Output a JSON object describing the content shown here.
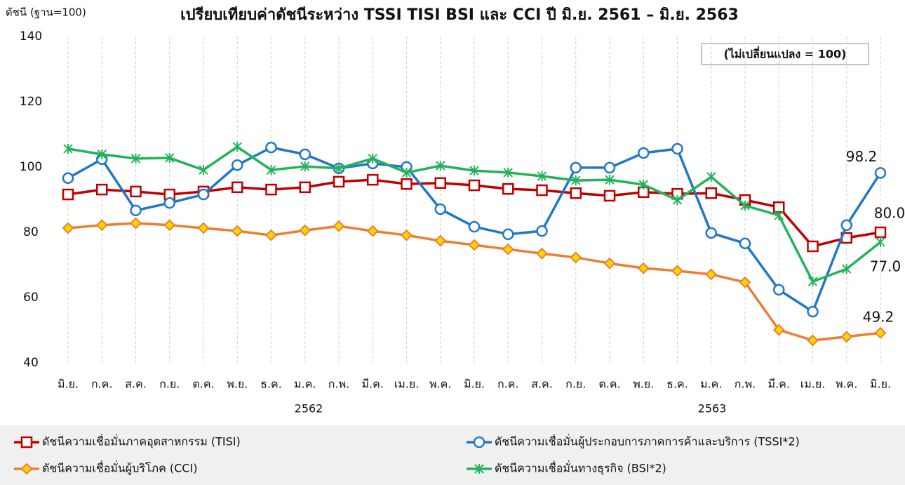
{
  "chart_data": {
    "type": "line",
    "title": "เปรียบเทียบค่าดัชนีระหว่าง TSSI TISI BSI และ CCI ปี มิ.ย. 2561 – มิ.ย. 2563",
    "y_axis_label": "ดัชนี (ฐาน=100)",
    "annotation": "(ไม่เปลี่ยนแปลง = 100)",
    "categories": [
      "มิ.ย.",
      "ก.ค.",
      "ส.ค.",
      "ก.ย.",
      "ต.ค.",
      "พ.ย.",
      "ธ.ค.",
      "ม.ค.",
      "ก.พ.",
      "มี.ค.",
      "เม.ย.",
      "พ.ค.",
      "มิ.ย.",
      "ก.ค.",
      "ส.ค.",
      "ก.ย.",
      "ต.ค.",
      "พ.ย.",
      "ธ.ค.",
      "ม.ค.",
      "ก.พ.",
      "มี.ค.",
      "เม.ย.",
      "พ.ค.",
      "มิ.ย."
    ],
    "year_labels": [
      "2562",
      "2563"
    ],
    "ylim": [
      40,
      140
    ],
    "yticks": [
      40,
      60,
      80,
      100,
      120,
      140
    ],
    "series": [
      {
        "name": "ดัชนีความเชื่อมั่นภาคอุตสาหกรรม (TISI)",
        "color": "#c00000",
        "marker": "square",
        "values": [
          91.6,
          93.1,
          92.5,
          91.6,
          92.5,
          93.8,
          93.1,
          93.8,
          95.5,
          96.1,
          94.8,
          95.1,
          94.4,
          93.3,
          92.9,
          92.0,
          91.2,
          92.3,
          91.8,
          92.0,
          89.9,
          87.7,
          75.7,
          78.3,
          80.0
        ],
        "value_labels": [
          null,
          null,
          null,
          null,
          null,
          null,
          null,
          null,
          null,
          null,
          null,
          null,
          null,
          null,
          null,
          null,
          null,
          null,
          null,
          null,
          null,
          null,
          null,
          null,
          "80.0"
        ]
      },
      {
        "name": "ดัชนีความเชื่อมั่นผู้ประกอบการภาคการค้าและบริการ (TSSI*2)",
        "color": "#1f78c8",
        "marker": "circle",
        "values": [
          96.6,
          102.4,
          86.7,
          89.0,
          91.6,
          100.6,
          106.0,
          103.9,
          99.6,
          101.1,
          100.0,
          87.1,
          81.7,
          79.4,
          80.4,
          99.8,
          99.8,
          104.3,
          105.6,
          79.8,
          76.6,
          62.4,
          55.7,
          82.2,
          98.2
        ],
        "value_labels": [
          null,
          null,
          null,
          null,
          null,
          null,
          null,
          null,
          null,
          null,
          null,
          null,
          null,
          null,
          null,
          null,
          null,
          null,
          null,
          null,
          null,
          null,
          null,
          null,
          "98.2"
        ]
      },
      {
        "name": "ดัชนีความเชื่อมั่นผู้บริโภค (CCI)",
        "color": "#ed7d31",
        "marker": "diamond",
        "values": [
          81.3,
          82.2,
          82.8,
          82.2,
          81.3,
          80.4,
          79.1,
          80.6,
          81.9,
          80.4,
          79.1,
          77.4,
          76.1,
          74.8,
          73.5,
          72.3,
          70.5,
          69.0,
          68.2,
          67.1,
          64.7,
          50.1,
          46.9,
          48.0,
          49.2
        ],
        "value_labels": [
          null,
          null,
          null,
          null,
          null,
          null,
          null,
          null,
          null,
          null,
          null,
          null,
          null,
          null,
          null,
          null,
          null,
          null,
          null,
          null,
          null,
          null,
          null,
          null,
          "49.2"
        ]
      },
      {
        "name": "ดัชนีความเชื่อมั่นทางธุรกิจ (BSI*2)",
        "color": "#22b35a",
        "marker": "asterisk",
        "values": [
          105.6,
          103.9,
          102.6,
          102.8,
          99.1,
          106.2,
          99.1,
          100.2,
          99.6,
          102.6,
          98.3,
          100.4,
          98.9,
          98.3,
          97.2,
          95.9,
          96.1,
          94.6,
          89.9,
          97.0,
          88.2,
          85.2,
          64.9,
          68.8,
          77.0
        ],
        "value_labels": [
          null,
          null,
          null,
          null,
          null,
          null,
          null,
          null,
          null,
          null,
          null,
          null,
          null,
          null,
          null,
          null,
          null,
          null,
          null,
          null,
          null,
          null,
          null,
          null,
          "77.0"
        ]
      }
    ]
  }
}
